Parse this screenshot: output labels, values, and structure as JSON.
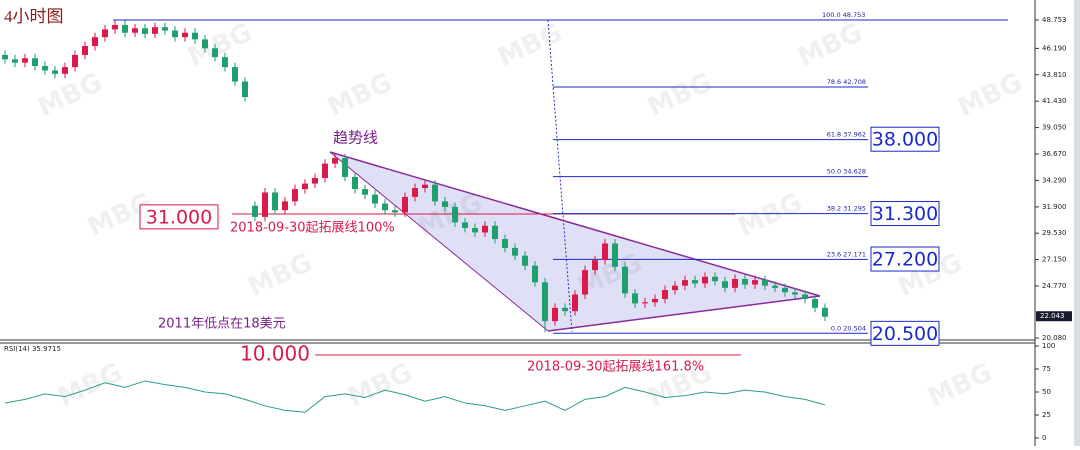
{
  "chart_data": {
    "type": "candlestick",
    "title": "4小时图",
    "watermark": "MBG",
    "up_color": "#d81b4a",
    "down_color": "#1f9e6e",
    "ylim": [
      19.9,
      50.1
    ],
    "yticks": [
      48.753,
      {
        "value": 46.19,
        "label": "46.190"
      },
      {
        "value": 43.81,
        "label": "43.810"
      },
      {
        "value": 41.43,
        "label": "41.430"
      },
      {
        "value": 39.05,
        "label": "39.050"
      },
      {
        "value": 36.67,
        "label": "36.670"
      },
      {
        "value": 34.29,
        "label": "34.290"
      },
      {
        "value": 31.9,
        "label": "31.900"
      },
      {
        "value": 29.53,
        "label": "29.530"
      },
      {
        "value": 27.15,
        "label": "27.150"
      },
      {
        "value": 24.77,
        "label": "24.770"
      },
      {
        "value": 20.08,
        "label": "20.080"
      }
    ],
    "last_price": 22.043,
    "series": [
      {
        "name": "price",
        "open": [
          45.6,
          45.2,
          44.9,
          45.3,
          44.6,
          44.2,
          43.9,
          44.5,
          45.6,
          46.4,
          47.2,
          47.9,
          48.3,
          47.6,
          48.0,
          47.5,
          48.1,
          47.8,
          47.2,
          47.6,
          47.0,
          46.2,
          45.4,
          44.5,
          43.2,
          32.0,
          31.0,
          33.2,
          31.6,
          32.4,
          33.5,
          34.0,
          34.5,
          35.8,
          36.3,
          34.6,
          33.5,
          33.0,
          32.2,
          31.6,
          31.4,
          32.8,
          33.6,
          33.9,
          32.4,
          31.9,
          30.5,
          30.0,
          29.6,
          30.2,
          29.0,
          28.2,
          27.5,
          26.6,
          25.1,
          21.6,
          22.8,
          22.5,
          24.0,
          26.2,
          27.1,
          28.6,
          26.5,
          24.1,
          23.2,
          23.3,
          23.6,
          24.4,
          24.8,
          25.3,
          25.0,
          25.6,
          25.2,
          24.6,
          25.4,
          24.9,
          25.3,
          24.8,
          24.6,
          24.2,
          24.0,
          23.6,
          22.8
        ],
        "high": [
          46.0,
          45.6,
          45.7,
          45.7,
          45.0,
          44.6,
          44.9,
          46.0,
          46.8,
          47.6,
          48.3,
          48.7,
          48.7,
          48.4,
          48.4,
          48.5,
          48.5,
          48.2,
          48.0,
          48.0,
          47.4,
          46.6,
          45.8,
          44.9,
          43.6,
          32.4,
          33.6,
          33.6,
          32.8,
          33.9,
          34.4,
          34.9,
          36.2,
          36.7,
          36.7,
          35.0,
          33.9,
          33.4,
          32.6,
          32.0,
          33.2,
          34.0,
          34.3,
          34.3,
          32.8,
          32.3,
          30.9,
          30.4,
          30.6,
          30.6,
          29.4,
          28.6,
          27.9,
          27.0,
          25.5,
          23.2,
          23.2,
          24.4,
          26.6,
          27.5,
          29.0,
          29.0,
          26.9,
          24.5,
          23.7,
          24.0,
          24.8,
          25.2,
          25.7,
          25.7,
          26.0,
          26.0,
          25.6,
          25.8,
          25.8,
          25.7,
          25.7,
          25.2,
          25.0,
          24.6,
          24.4,
          24.0,
          23.2
        ],
        "low": [
          44.8,
          44.5,
          44.5,
          44.2,
          43.8,
          43.5,
          43.5,
          44.1,
          45.2,
          46.0,
          46.8,
          47.5,
          47.2,
          47.2,
          47.1,
          47.1,
          47.4,
          46.8,
          46.8,
          46.6,
          45.8,
          45.0,
          44.1,
          42.8,
          41.4,
          30.6,
          30.6,
          31.2,
          31.2,
          32.0,
          33.1,
          33.6,
          34.1,
          35.4,
          34.2,
          33.1,
          32.6,
          31.8,
          31.2,
          31.0,
          31.0,
          32.4,
          33.2,
          32.0,
          31.5,
          30.1,
          29.6,
          29.2,
          29.2,
          28.6,
          27.8,
          27.1,
          26.2,
          24.7,
          20.6,
          21.2,
          22.1,
          22.1,
          23.6,
          25.8,
          26.7,
          26.1,
          23.7,
          22.8,
          22.8,
          22.9,
          23.2,
          24.0,
          24.4,
          24.6,
          24.6,
          24.8,
          24.2,
          24.2,
          24.5,
          24.5,
          24.4,
          24.2,
          23.8,
          23.6,
          23.2,
          22.4,
          21.6
        ],
        "close": [
          45.2,
          44.9,
          45.3,
          44.6,
          44.2,
          43.9,
          44.5,
          45.6,
          46.4,
          47.2,
          47.9,
          48.3,
          47.6,
          48.0,
          47.5,
          48.1,
          47.8,
          47.2,
          47.6,
          47.0,
          46.2,
          45.4,
          44.5,
          43.2,
          41.8,
          31.0,
          33.2,
          31.6,
          32.4,
          33.5,
          34.0,
          34.5,
          35.8,
          36.3,
          34.6,
          33.5,
          33.0,
          32.2,
          31.6,
          31.4,
          32.8,
          33.6,
          33.9,
          32.4,
          31.9,
          30.5,
          30.0,
          29.6,
          30.2,
          29.0,
          28.2,
          27.5,
          26.6,
          25.1,
          21.6,
          22.8,
          22.5,
          24.0,
          26.2,
          27.1,
          28.6,
          26.5,
          24.1,
          23.2,
          23.3,
          23.6,
          24.4,
          24.8,
          25.3,
          25.0,
          25.6,
          25.2,
          24.6,
          25.4,
          24.9,
          25.3,
          24.8,
          24.6,
          24.2,
          24.0,
          23.6,
          22.8,
          22.0
        ]
      }
    ],
    "fib_levels": [
      {
        "value": 48.753,
        "label": "100.0  48.753"
      },
      {
        "value": 42.708,
        "label": "78.6  42.708"
      },
      {
        "value": 37.962,
        "label": "61.8  37.962"
      },
      {
        "value": 34.628,
        "label": "50.0  34.628"
      },
      {
        "value": 31.295,
        "label": "38.2  31.295"
      },
      {
        "value": 27.171,
        "label": "23.6  27.171"
      },
      {
        "value": 20.504,
        "label": "0.0  20.504"
      }
    ],
    "boxes": [
      {
        "value": 38,
        "label": "38.000"
      },
      {
        "value": 31.3,
        "label": "31.300"
      },
      {
        "value": 27.2,
        "label": "27.200"
      },
      {
        "value": 20.5,
        "label": "20.500"
      },
      {
        "value": 31,
        "label": "31.000"
      }
    ],
    "annotations": [
      "趋势线",
      "2018-09-30起拓展线100%",
      "2011年低点在18美元",
      "2018-09-30起拓展线161.8%",
      "10.000"
    ],
    "rsi": {
      "label": "RSI(14) 35.9715",
      "color": "#2a9d8f",
      "ylim": [
        0,
        100
      ],
      "yticks": [
        100,
        75,
        50,
        25,
        0
      ],
      "values": [
        38,
        42,
        48,
        45,
        52,
        60,
        55,
        62,
        58,
        55,
        50,
        48,
        42,
        35,
        30,
        28,
        45,
        48,
        44,
        52,
        47,
        40,
        45,
        38,
        35,
        30,
        35,
        40,
        30,
        42,
        45,
        55,
        50,
        44,
        46,
        50,
        48,
        52,
        50,
        45,
        42,
        35.9715
      ]
    }
  }
}
